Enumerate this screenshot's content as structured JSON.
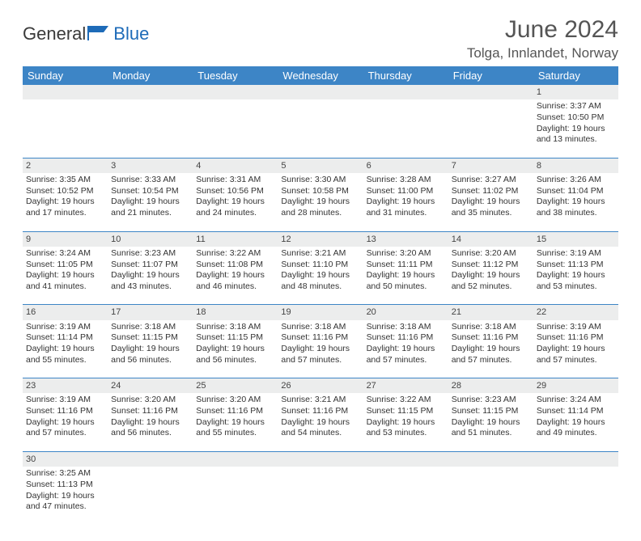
{
  "brand": {
    "name_part1": "General",
    "name_part2": "Blue",
    "logo_color": "#1e6bb8"
  },
  "title": "June 2024",
  "location": "Tolga, Innlandet, Norway",
  "colors": {
    "header_bg": "#3d85c6",
    "header_text": "#ffffff",
    "daynum_bg": "#eceded",
    "rule": "#3d85c6",
    "text": "#333333"
  },
  "weekdays": [
    "Sunday",
    "Monday",
    "Tuesday",
    "Wednesday",
    "Thursday",
    "Friday",
    "Saturday"
  ],
  "weeks": [
    [
      null,
      null,
      null,
      null,
      null,
      null,
      {
        "n": "1",
        "sunrise": "Sunrise: 3:37 AM",
        "sunset": "Sunset: 10:50 PM",
        "daylight": "Daylight: 19 hours and 13 minutes."
      }
    ],
    [
      {
        "n": "2",
        "sunrise": "Sunrise: 3:35 AM",
        "sunset": "Sunset: 10:52 PM",
        "daylight": "Daylight: 19 hours and 17 minutes."
      },
      {
        "n": "3",
        "sunrise": "Sunrise: 3:33 AM",
        "sunset": "Sunset: 10:54 PM",
        "daylight": "Daylight: 19 hours and 21 minutes."
      },
      {
        "n": "4",
        "sunrise": "Sunrise: 3:31 AM",
        "sunset": "Sunset: 10:56 PM",
        "daylight": "Daylight: 19 hours and 24 minutes."
      },
      {
        "n": "5",
        "sunrise": "Sunrise: 3:30 AM",
        "sunset": "Sunset: 10:58 PM",
        "daylight": "Daylight: 19 hours and 28 minutes."
      },
      {
        "n": "6",
        "sunrise": "Sunrise: 3:28 AM",
        "sunset": "Sunset: 11:00 PM",
        "daylight": "Daylight: 19 hours and 31 minutes."
      },
      {
        "n": "7",
        "sunrise": "Sunrise: 3:27 AM",
        "sunset": "Sunset: 11:02 PM",
        "daylight": "Daylight: 19 hours and 35 minutes."
      },
      {
        "n": "8",
        "sunrise": "Sunrise: 3:26 AM",
        "sunset": "Sunset: 11:04 PM",
        "daylight": "Daylight: 19 hours and 38 minutes."
      }
    ],
    [
      {
        "n": "9",
        "sunrise": "Sunrise: 3:24 AM",
        "sunset": "Sunset: 11:05 PM",
        "daylight": "Daylight: 19 hours and 41 minutes."
      },
      {
        "n": "10",
        "sunrise": "Sunrise: 3:23 AM",
        "sunset": "Sunset: 11:07 PM",
        "daylight": "Daylight: 19 hours and 43 minutes."
      },
      {
        "n": "11",
        "sunrise": "Sunrise: 3:22 AM",
        "sunset": "Sunset: 11:08 PM",
        "daylight": "Daylight: 19 hours and 46 minutes."
      },
      {
        "n": "12",
        "sunrise": "Sunrise: 3:21 AM",
        "sunset": "Sunset: 11:10 PM",
        "daylight": "Daylight: 19 hours and 48 minutes."
      },
      {
        "n": "13",
        "sunrise": "Sunrise: 3:20 AM",
        "sunset": "Sunset: 11:11 PM",
        "daylight": "Daylight: 19 hours and 50 minutes."
      },
      {
        "n": "14",
        "sunrise": "Sunrise: 3:20 AM",
        "sunset": "Sunset: 11:12 PM",
        "daylight": "Daylight: 19 hours and 52 minutes."
      },
      {
        "n": "15",
        "sunrise": "Sunrise: 3:19 AM",
        "sunset": "Sunset: 11:13 PM",
        "daylight": "Daylight: 19 hours and 53 minutes."
      }
    ],
    [
      {
        "n": "16",
        "sunrise": "Sunrise: 3:19 AM",
        "sunset": "Sunset: 11:14 PM",
        "daylight": "Daylight: 19 hours and 55 minutes."
      },
      {
        "n": "17",
        "sunrise": "Sunrise: 3:18 AM",
        "sunset": "Sunset: 11:15 PM",
        "daylight": "Daylight: 19 hours and 56 minutes."
      },
      {
        "n": "18",
        "sunrise": "Sunrise: 3:18 AM",
        "sunset": "Sunset: 11:15 PM",
        "daylight": "Daylight: 19 hours and 56 minutes."
      },
      {
        "n": "19",
        "sunrise": "Sunrise: 3:18 AM",
        "sunset": "Sunset: 11:16 PM",
        "daylight": "Daylight: 19 hours and 57 minutes."
      },
      {
        "n": "20",
        "sunrise": "Sunrise: 3:18 AM",
        "sunset": "Sunset: 11:16 PM",
        "daylight": "Daylight: 19 hours and 57 minutes."
      },
      {
        "n": "21",
        "sunrise": "Sunrise: 3:18 AM",
        "sunset": "Sunset: 11:16 PM",
        "daylight": "Daylight: 19 hours and 57 minutes."
      },
      {
        "n": "22",
        "sunrise": "Sunrise: 3:19 AM",
        "sunset": "Sunset: 11:16 PM",
        "daylight": "Daylight: 19 hours and 57 minutes."
      }
    ],
    [
      {
        "n": "23",
        "sunrise": "Sunrise: 3:19 AM",
        "sunset": "Sunset: 11:16 PM",
        "daylight": "Daylight: 19 hours and 57 minutes."
      },
      {
        "n": "24",
        "sunrise": "Sunrise: 3:20 AM",
        "sunset": "Sunset: 11:16 PM",
        "daylight": "Daylight: 19 hours and 56 minutes."
      },
      {
        "n": "25",
        "sunrise": "Sunrise: 3:20 AM",
        "sunset": "Sunset: 11:16 PM",
        "daylight": "Daylight: 19 hours and 55 minutes."
      },
      {
        "n": "26",
        "sunrise": "Sunrise: 3:21 AM",
        "sunset": "Sunset: 11:16 PM",
        "daylight": "Daylight: 19 hours and 54 minutes."
      },
      {
        "n": "27",
        "sunrise": "Sunrise: 3:22 AM",
        "sunset": "Sunset: 11:15 PM",
        "daylight": "Daylight: 19 hours and 53 minutes."
      },
      {
        "n": "28",
        "sunrise": "Sunrise: 3:23 AM",
        "sunset": "Sunset: 11:15 PM",
        "daylight": "Daylight: 19 hours and 51 minutes."
      },
      {
        "n": "29",
        "sunrise": "Sunrise: 3:24 AM",
        "sunset": "Sunset: 11:14 PM",
        "daylight": "Daylight: 19 hours and 49 minutes."
      }
    ],
    [
      {
        "n": "30",
        "sunrise": "Sunrise: 3:25 AM",
        "sunset": "Sunset: 11:13 PM",
        "daylight": "Daylight: 19 hours and 47 minutes."
      },
      null,
      null,
      null,
      null,
      null,
      null
    ]
  ]
}
